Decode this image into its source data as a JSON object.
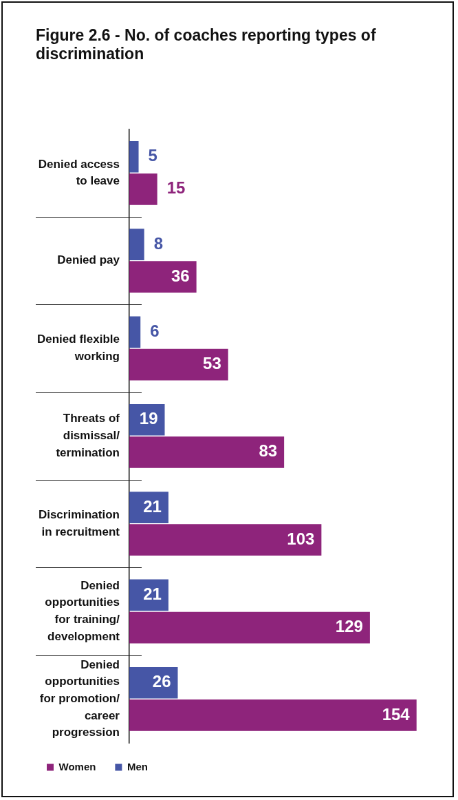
{
  "chart_data": {
    "type": "bar",
    "orientation": "horizontal",
    "title": "Figure 2.6 - No. of coaches reporting types of discrimination",
    "categories": [
      "Denied access to leave",
      "Denied pay",
      "Denied flexible working",
      "Threats of dismissal/termination",
      "Discrimination in recruitment",
      "Denied opportunities for training/development",
      "Denied opportunities for promotion/career progression"
    ],
    "series": [
      {
        "name": "Men",
        "color": "#4656a6",
        "values": [
          5,
          8,
          6,
          19,
          21,
          21,
          26
        ]
      },
      {
        "name": "Women",
        "color": "#8e247b",
        "values": [
          15,
          36,
          53,
          83,
          103,
          129,
          154
        ]
      }
    ],
    "data_labels": true,
    "legend": "bottom left",
    "grid": false,
    "tick_labels": "y"
  }
}
